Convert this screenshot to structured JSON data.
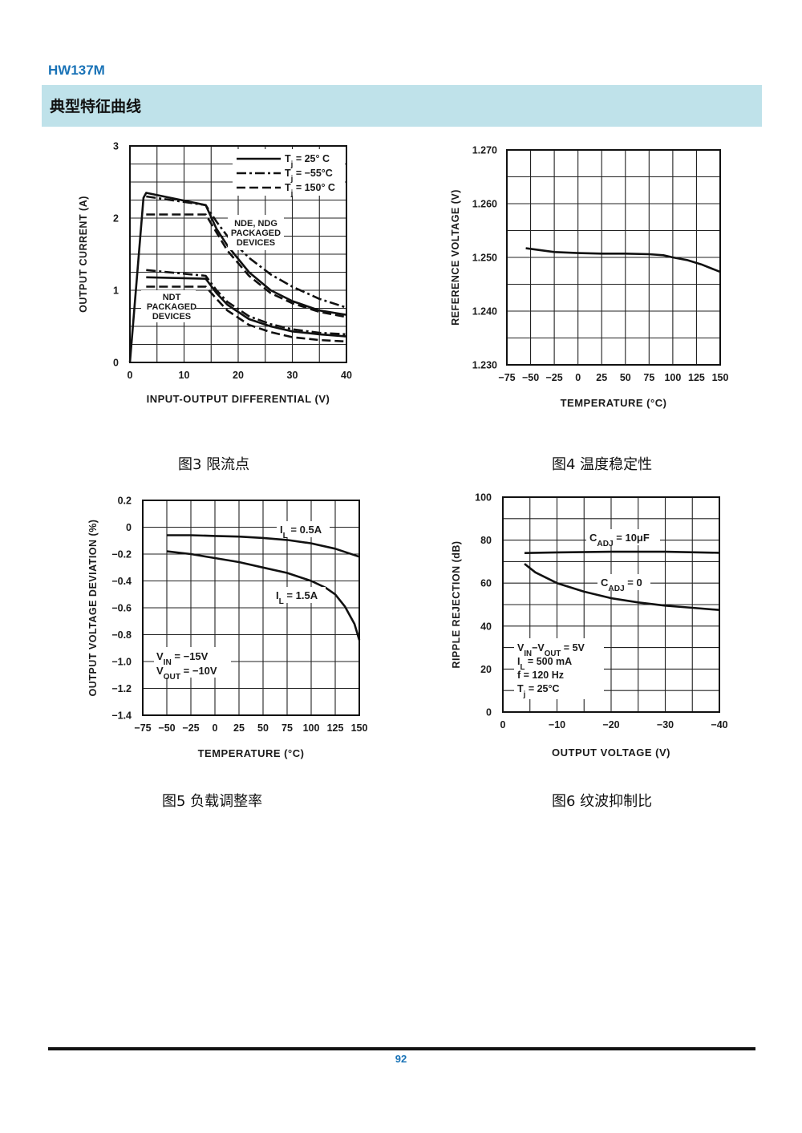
{
  "header": {
    "brand": "HW137M",
    "section_title": "典型特征曲线"
  },
  "captions": {
    "fig3": "图3  限流点",
    "fig4": "图4  温度稳定性",
    "fig5": "图5  负载调整率",
    "fig6": "图6  纹波抑制比"
  },
  "footer": {
    "page_number": "92"
  },
  "colors": {
    "brand": "#1a73b7",
    "section_bar": "#bfe2ea",
    "ink": "#111111"
  },
  "chart_data": [
    {
      "id": "fig3",
      "type": "line",
      "xlabel": "INPUT-OUTPUT DIFFERENTIAL (V)",
      "ylabel": "OUTPUT CURRENT (A)",
      "xlim": [
        0,
        40
      ],
      "ylim": [
        0,
        3
      ],
      "xticks": [
        "0",
        "10",
        "20",
        "30",
        "40"
      ],
      "yticks": [
        "0",
        "1",
        "2",
        "3"
      ],
      "grid": true,
      "legend_position": "top-right",
      "legend": [
        "Tj = 25° C",
        "Tj = −55°C",
        "Tj = 150° C"
      ],
      "annotations": [
        "NDE, NDG PACKAGED DEVICES",
        "NDT PACKAGED DEVICES"
      ],
      "series": [
        {
          "name": "Tj = 25° C",
          "group": "NDE, NDG",
          "style": "solid",
          "x": [
            0,
            2.5,
            3,
            14,
            16,
            18,
            22,
            26,
            30,
            35,
            40
          ],
          "y": [
            0,
            2.28,
            2.35,
            2.18,
            1.85,
            1.62,
            1.25,
            1.0,
            0.85,
            0.72,
            0.66
          ]
        },
        {
          "name": "Tj = −55°C",
          "group": "NDE, NDG",
          "style": "dashdot",
          "x": [
            3,
            14,
            16,
            18,
            22,
            26,
            30,
            35,
            40
          ],
          "y": [
            2.3,
            2.18,
            1.95,
            1.75,
            1.45,
            1.22,
            1.05,
            0.88,
            0.76
          ]
        },
        {
          "name": "Tj = 150° C",
          "group": "NDE, NDG",
          "style": "dashed",
          "x": [
            3,
            14,
            16,
            18,
            22,
            26,
            30,
            35,
            40
          ],
          "y": [
            2.05,
            2.05,
            1.8,
            1.55,
            1.2,
            0.96,
            0.82,
            0.7,
            0.63
          ]
        },
        {
          "name": "Tj = 25° C",
          "group": "NDT",
          "style": "solid",
          "x": [
            3,
            14,
            16,
            18,
            22,
            26,
            30,
            35,
            40
          ],
          "y": [
            1.18,
            1.16,
            0.96,
            0.8,
            0.6,
            0.5,
            0.43,
            0.39,
            0.36
          ]
        },
        {
          "name": "Tj = −55°C",
          "group": "NDT",
          "style": "dashdot",
          "x": [
            3,
            14,
            16,
            18,
            22,
            26,
            30,
            35,
            40
          ],
          "y": [
            1.28,
            1.2,
            1.0,
            0.84,
            0.64,
            0.53,
            0.46,
            0.41,
            0.39
          ]
        },
        {
          "name": "Tj = 150° C",
          "group": "NDT",
          "style": "dashed",
          "x": [
            3,
            14,
            16,
            18,
            22,
            26,
            30,
            35,
            40
          ],
          "y": [
            1.05,
            1.05,
            0.88,
            0.72,
            0.52,
            0.42,
            0.35,
            0.31,
            0.29
          ]
        }
      ]
    },
    {
      "id": "fig4",
      "type": "line",
      "xlabel": "TEMPERATURE (°C)",
      "ylabel": "REFERENCE VOLTAGE (V)",
      "xlim": [
        -75,
        150
      ],
      "ylim": [
        1.23,
        1.27
      ],
      "xticks": [
        "−75",
        "−50",
        "−25",
        "0",
        "25",
        "50",
        "75",
        "100",
        "125",
        "150"
      ],
      "yticks": [
        "1.230",
        "1.240",
        "1.250",
        "1.260",
        "1.270"
      ],
      "grid": true,
      "series": [
        {
          "style": "solid",
          "x": [
            -55,
            -25,
            0,
            25,
            50,
            75,
            90,
            100,
            115,
            130,
            150
          ],
          "y": [
            1.2517,
            1.251,
            1.2508,
            1.2507,
            1.2507,
            1.2506,
            1.2504,
            1.25,
            1.2495,
            1.2487,
            1.2473
          ]
        }
      ]
    },
    {
      "id": "fig5",
      "type": "line",
      "xlabel": "TEMPERATURE (°C)",
      "ylabel": "OUTPUT VOLTAGE DEVIATION (%)",
      "xlim": [
        -75,
        150
      ],
      "ylim": [
        -1.4,
        0.2
      ],
      "xticks": [
        "−75",
        "−50",
        "−25",
        "0",
        "25",
        "50",
        "75",
        "100",
        "125",
        "150"
      ],
      "yticks": [
        "−1.4",
        "−1.2",
        "−1.0",
        "−0.8",
        "−0.6",
        "−0.4",
        "−0.2",
        "0",
        "0.2"
      ],
      "grid": true,
      "annotations": [
        "VIN = −15V",
        "VOUT = −10V"
      ],
      "series": [
        {
          "name": "IL = 0.5A",
          "style": "solid",
          "x": [
            -50,
            -25,
            0,
            25,
            50,
            75,
            100,
            125,
            150
          ],
          "y": [
            -0.06,
            -0.06,
            -0.065,
            -0.07,
            -0.08,
            -0.095,
            -0.12,
            -0.16,
            -0.22
          ]
        },
        {
          "name": "IL = 1.5A",
          "style": "solid",
          "x": [
            -50,
            -25,
            0,
            25,
            50,
            75,
            100,
            115,
            125,
            135,
            145,
            150
          ],
          "y": [
            -0.18,
            -0.2,
            -0.23,
            -0.26,
            -0.3,
            -0.34,
            -0.4,
            -0.45,
            -0.5,
            -0.59,
            -0.72,
            -0.84
          ]
        }
      ]
    },
    {
      "id": "fig6",
      "type": "line",
      "xlabel": "OUTPUT VOLTAGE (V)",
      "ylabel": "RIPPLE REJECTION (dB)",
      "xlim": [
        0,
        -40
      ],
      "ylim": [
        0,
        100
      ],
      "xticks": [
        "0",
        "−10",
        "−20",
        "−30",
        "−40"
      ],
      "yticks": [
        "0",
        "20",
        "40",
        "60",
        "80",
        "100"
      ],
      "grid": true,
      "annotations": [
        "VIN−VOUT = 5V",
        "IL = 500 mA",
        "f = 120 Hz",
        "Tj = 25°C"
      ],
      "series": [
        {
          "name": "CADJ = 10μF",
          "style": "solid",
          "x": [
            -4,
            -10,
            -20,
            -30,
            -40
          ],
          "y": [
            74,
            74.3,
            74.6,
            74.6,
            74.1
          ]
        },
        {
          "name": "CADJ = 0",
          "style": "solid",
          "x": [
            -4,
            -6,
            -10,
            -15,
            -20,
            -25,
            -30,
            -35,
            -40
          ],
          "y": [
            69,
            65,
            60,
            56,
            53,
            51,
            49.5,
            48.5,
            47.5
          ]
        }
      ]
    }
  ]
}
